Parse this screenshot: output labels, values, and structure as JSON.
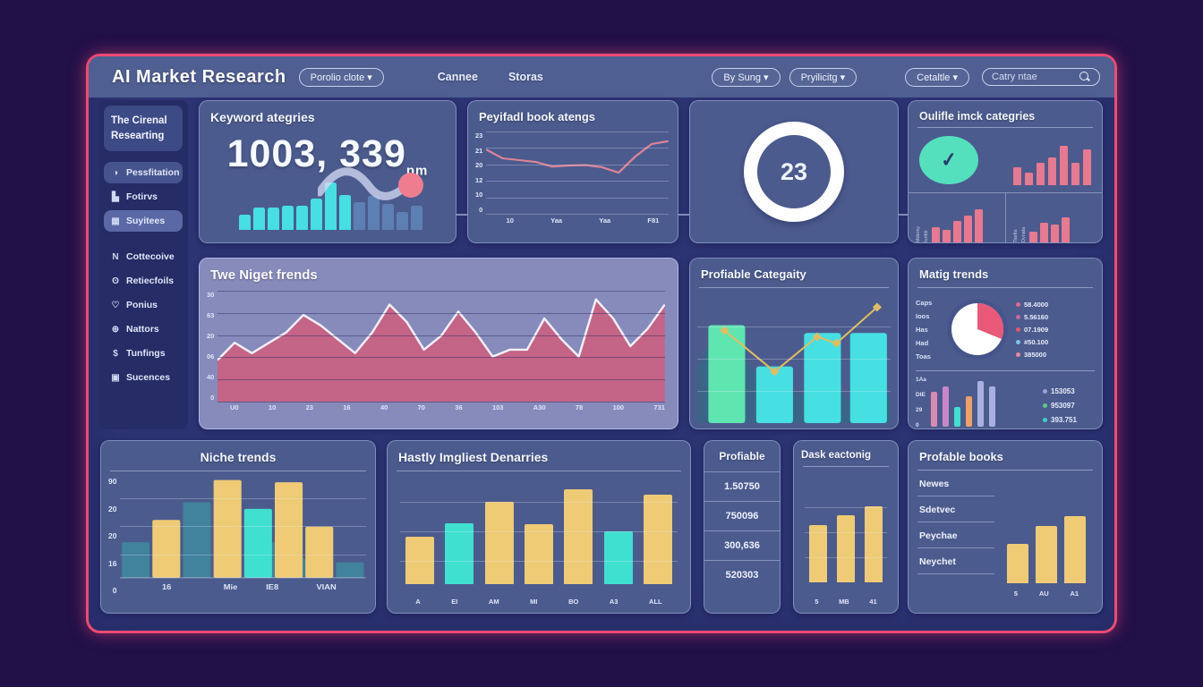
{
  "colors": {
    "accent": "#ef4a74",
    "mint": "#5fe5b0",
    "cyan": "#46dfe2",
    "brightCyan": "#3fe0d0",
    "steel": "#5d80b4",
    "teal": "#3f8aa0",
    "yellow": "#eecb74",
    "pink": "#e8798f",
    "rose": "#ca6182",
    "lavender": "#a8b0e0",
    "orange": "#efa066",
    "magenta": "#d98ab4",
    "purple": "#c887c8",
    "lineYellow": "#e0bd62",
    "skyBlue": "#7ec3e8",
    "green": "#5cc98a",
    "red": "#e05a6a",
    "mauve": "#c76a9a",
    "white": "#ffffff"
  },
  "header": {
    "title": "AI Market Research",
    "portfolio_dropdown": "Porolio clote ▾",
    "nav": [
      "Cannee",
      "Storas"
    ],
    "filters": [
      "By Sung ▾",
      "Pryilicitg ▾"
    ],
    "category_dropdown": "Cetaltle   ▾",
    "search_placeholder": "Catry ntae"
  },
  "sidebar": {
    "header": "The Cirenal Researting",
    "items": [
      {
        "label": "Pessfitation",
        "icon": "pie-chart",
        "style": "hl1"
      },
      {
        "label": "Fotirvs",
        "icon": "bar-chart",
        "style": ""
      },
      {
        "label": "Suyitees",
        "icon": "grid",
        "style": "hl2"
      },
      {
        "label": "Cottecoive",
        "icon": "letter-n",
        "style": "gap"
      },
      {
        "label": "Retiecfoils",
        "icon": "clock",
        "style": ""
      },
      {
        "label": "Ponius",
        "icon": "heart",
        "style": ""
      },
      {
        "label": "Nattors",
        "icon": "globe",
        "style": ""
      },
      {
        "label": "Tunfings",
        "icon": "dollar",
        "style": ""
      },
      {
        "label": "Sucences",
        "icon": "archive",
        "style": ""
      }
    ]
  },
  "cards": {
    "keyword": {
      "title": "Keyword ategries",
      "value": "1003, 339",
      "unit": "pm",
      "bars_cyan": [
        0.3,
        0.45,
        0.45,
        0.48,
        0.48,
        0.62,
        0.95,
        0.7
      ],
      "bars_blue": [
        0.55,
        0.68,
        0.52,
        0.35,
        0.48
      ]
    },
    "bookRatings": {
      "title": "Peyifadl book atengs",
      "y_ticks": [
        "23",
        "21",
        "20",
        "12",
        "10",
        "0"
      ],
      "x_ticks": [
        "10",
        "Yaa",
        "Yaa",
        "F81"
      ],
      "ymax": 23,
      "line": [
        18,
        15.5,
        15,
        14.5,
        13.2,
        13.5,
        13.6,
        13,
        11.5,
        16,
        19.5,
        20.3
      ]
    },
    "donut": {
      "value": "23"
    },
    "quality": {
      "title": "Oulifle imck categries",
      "top_bars": [
        0.35,
        0.25,
        0.45,
        0.55,
        0.78,
        0.45,
        0.72
      ],
      "groups": [
        {
          "labels": [
            "Mdersy",
            "Iunfdi"
          ],
          "bars": [
            0.35,
            0.28,
            0.5,
            0.62,
            0.75
          ]
        },
        {
          "labels": [
            "Tasfte",
            "Dvnala"
          ],
          "bars": [
            0.25,
            0.45,
            0.4,
            0.58
          ]
        }
      ]
    },
    "nugget": {
      "title": "Twe Niget frends",
      "y_ticks": [
        "30",
        "63",
        "20",
        "06",
        "40",
        "0"
      ],
      "x_ticks": [
        "U0",
        "10",
        "23",
        "16",
        "40",
        "70",
        "36",
        "103",
        "A30",
        "78",
        "100",
        "731"
      ],
      "ymax": 32,
      "area": [
        12,
        17,
        14,
        17,
        20,
        25,
        22,
        18,
        14,
        20,
        28,
        23,
        15,
        19,
        26,
        20,
        13,
        15,
        15,
        24,
        18,
        13,
        29.5,
        24,
        16,
        21,
        28
      ]
    },
    "category": {
      "title": "Profiable Categaity",
      "bars": [
        {
          "color": "mint",
          "v": 0.76
        },
        {
          "color": "cyan",
          "v": 0.44
        },
        {
          "color": "cyan",
          "v": 0.7
        },
        {
          "color": "cyan",
          "v": 0.7
        }
      ],
      "line": [
        [
          0.14,
          0.72
        ],
        [
          0.4,
          0.4
        ],
        [
          0.62,
          0.67
        ],
        [
          0.72,
          0.62
        ],
        [
          0.93,
          0.9
        ]
      ],
      "silhouette": [
        [
          0,
          0.42
        ],
        [
          0.08,
          0.68
        ],
        [
          0.18,
          0.7
        ],
        [
          0.3,
          0.38
        ],
        [
          0.42,
          0.16
        ],
        [
          0.52,
          0.24
        ],
        [
          0.6,
          0.18
        ],
        [
          0.72,
          0.3
        ],
        [
          0.82,
          0.1
        ],
        [
          1,
          0.22
        ]
      ]
    },
    "matig": {
      "title": "Matig trends",
      "row_labels": [
        "Caps",
        "Ioos",
        "Has",
        "Had",
        "Toas"
      ],
      "pie_slice_pct": 20,
      "legend": [
        {
          "color": "#e06a8a",
          "value": "58.4000"
        },
        {
          "color": "#c76a9a",
          "value": "5.56160"
        },
        {
          "color": "#e05a6a",
          "value": "07.1909"
        },
        {
          "color": "#7ec3e8",
          "value": "#50.100"
        },
        {
          "color": "#e88a9a",
          "value": "385000"
        }
      ],
      "mini": {
        "y_ticks": [
          "1Aa",
          "DIE",
          "29",
          "0"
        ],
        "bars": [
          {
            "color": "magenta",
            "v": 0.68
          },
          {
            "color": "purple",
            "v": 0.78
          },
          {
            "color": "brightCyan",
            "v": 0.38
          },
          {
            "color": "orange",
            "v": 0.58
          },
          {
            "color": "lavender",
            "v": 0.88
          },
          {
            "color": "lavender",
            "v": 0.78
          }
        ],
        "x_ticks": [
          "U",
          "1",
          "4",
          "61",
          "76"
        ]
      },
      "legend2": [
        {
          "color": "#9aa3d8",
          "value": "153053"
        },
        {
          "color": "#5cc98a",
          "value": "953097"
        },
        {
          "color": "#3fd0c0",
          "value": "393.751"
        }
      ]
    },
    "niche": {
      "title": "Niche trends",
      "y_ticks": [
        "90",
        "20",
        "20",
        "16",
        "0"
      ],
      "x_ticks": [
        "16",
        "Mie",
        "IE8",
        "VIAN"
      ],
      "x_tick_pos": [
        0.19,
        0.45,
        0.62,
        0.84
      ],
      "bars": [
        {
          "color": "teal",
          "v": 0.16
        },
        {
          "color": "yellow",
          "v": 0.26
        },
        {
          "color": "teal",
          "v": 0.34
        },
        {
          "color": "yellow",
          "v": 0.44
        },
        {
          "color": "brightCyan",
          "v": 0.31
        },
        {
          "color": "yellow",
          "v": 0.43
        },
        {
          "color": "yellow",
          "v": 0.23
        },
        {
          "color": "teal",
          "v": 0.07
        }
      ]
    },
    "hastly": {
      "title": "Hastly Imgliest Denarries",
      "x_ticks": [
        "A",
        "EI",
        "AM",
        "MI",
        "BO",
        "A3",
        "ALL"
      ],
      "bars": [
        {
          "color": "yellow",
          "v": 0.45
        },
        {
          "color": "brightCyan",
          "v": 0.58
        },
        {
          "color": "yellow",
          "v": 0.78
        },
        {
          "color": "yellow",
          "v": 0.57
        },
        {
          "color": "yellow",
          "v": 0.9
        },
        {
          "color": "brightCyan",
          "v": 0.5
        },
        {
          "color": "yellow",
          "v": 0.85
        }
      ]
    },
    "profitable": {
      "title": "Profiable",
      "rows": [
        "1.50750",
        "750096",
        "300,636",
        "520303"
      ]
    },
    "dask": {
      "title": "Dask eactonig",
      "x_ticks": [
        "5",
        "MB",
        "41"
      ],
      "bars": [
        0.55,
        0.65,
        0.73
      ]
    },
    "books": {
      "title": "Profable books",
      "items": [
        "Newes",
        "Sdetvec",
        "Peychae",
        "Neychet"
      ],
      "x_ticks": [
        "5",
        "AU",
        "A1"
      ],
      "bars": [
        0.42,
        0.62,
        0.72
      ]
    }
  }
}
